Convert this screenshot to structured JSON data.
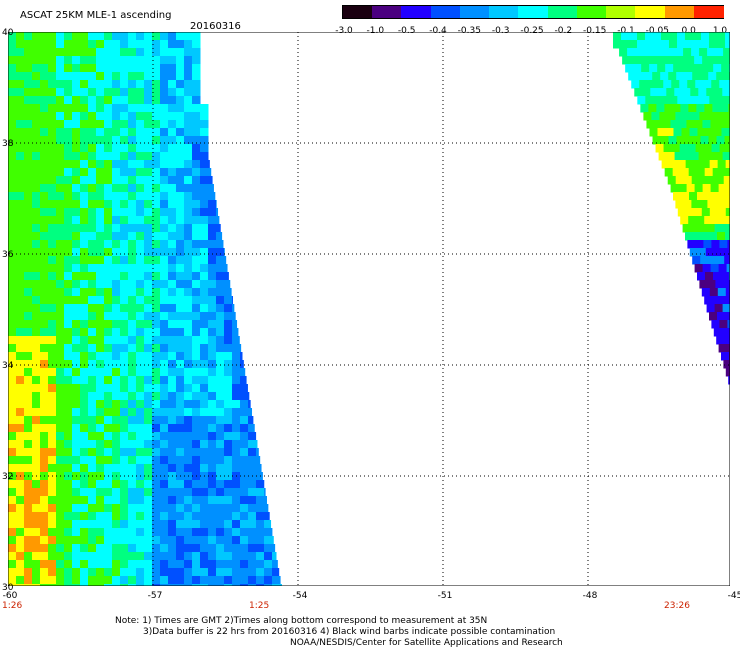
{
  "header": {
    "title": "ASCAT 25KM MLE-1 ascending",
    "date": "20160316"
  },
  "colorbar": {
    "labels": [
      "-3.0",
      "-1.0",
      "-0.5",
      "-0.4",
      "-0.35",
      "-0.3",
      "-0.25",
      "-0.2",
      "-0.15",
      "-0.1",
      "-0.05",
      "0.0",
      "1.0"
    ],
    "colors": [
      "#1a0010",
      "#4b0080",
      "#2200ff",
      "#0050ff",
      "#0090ff",
      "#00c8ff",
      "#00ffff",
      "#00ff80",
      "#40ff00",
      "#b0ff00",
      "#ffff00",
      "#ff9900",
      "#ff2200"
    ]
  },
  "axes": {
    "x_ticks": [
      "-60",
      "-57",
      "-54",
      "-51",
      "-48",
      "-45"
    ],
    "y_ticks": [
      "40",
      "38",
      "36",
      "34",
      "32",
      "30"
    ],
    "lon_range": [
      -60,
      -45
    ],
    "lat_range": [
      30,
      40
    ]
  },
  "times": {
    "left_start": "1:26",
    "left_end": "1:25",
    "right_end": "23:26"
  },
  "notes": {
    "line1": "Note: 1) Times are GMT 2)Times along bottom correspond to measurement at 35N",
    "line2": "3)Data buffer is 22 hrs from 20160316 4) Black wind barbs indicate possible contamination",
    "line3": "NOAA/NESDIS/Center for Satellite Applications and Research"
  },
  "palette": {
    "yellow": "#ffff00",
    "orange": "#ff9900",
    "green": "#40ff00",
    "lightgreen": "#00ff80",
    "cyan": "#00ffff",
    "lightblue": "#00c8ff",
    "blue": "#0090ff",
    "deepblue": "#0050ff",
    "royal": "#2200ff",
    "purple": "#4b0080"
  }
}
